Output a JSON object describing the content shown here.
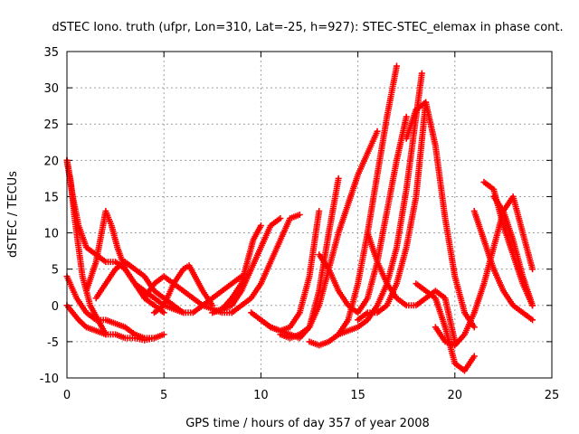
{
  "chart_data": {
    "type": "scatter",
    "title": "dSTEC Iono. truth (ufpr, Lon=310, Lat=-25, h=927): STEC-STEC_elemax in phase cont.",
    "xlabel": "GPS time / hours of day 357 of year 2008",
    "ylabel": "dSTEC  / TECUs",
    "xlim": [
      0,
      25
    ],
    "ylim": [
      -10,
      35
    ],
    "xticks": [
      0,
      5,
      10,
      15,
      20,
      25
    ],
    "yticks": [
      -10,
      -5,
      0,
      5,
      10,
      15,
      20,
      25,
      30,
      35
    ],
    "grid": true,
    "marker": "+",
    "color": "#ff0000",
    "series": [
      {
        "x": [
          0.0,
          0.2,
          0.4,
          0.6,
          0.8,
          1.0,
          1.2,
          1.4,
          1.6,
          1.8,
          2.0
        ],
        "y": [
          20,
          17,
          12,
          8,
          4,
          2,
          0,
          -1,
          -2,
          -3,
          -4
        ]
      },
      {
        "x": [
          0.0,
          0.3,
          0.6,
          1.0,
          1.5,
          2.0,
          2.5,
          3.0,
          3.5,
          4.0,
          4.5,
          5.0
        ],
        "y": [
          20,
          15,
          11,
          8,
          7,
          6,
          6,
          5,
          3,
          2,
          1,
          0
        ]
      },
      {
        "x": [
          0.0,
          0.5,
          1.0,
          1.5,
          2.0,
          2.5,
          3.0,
          3.5,
          4.0,
          4.5,
          5.0
        ],
        "y": [
          4,
          1,
          -1,
          -2,
          -2,
          -2.5,
          -3,
          -4,
          -4.5,
          -4.5,
          -4
        ]
      },
      {
        "x": [
          0.0,
          0.3,
          0.6,
          1.0,
          1.5,
          2.0,
          2.5,
          3.0,
          3.5,
          4.0,
          4.5
        ],
        "y": [
          0,
          -1,
          -2,
          -3,
          -3.5,
          -4,
          -4,
          -4.5,
          -4.5,
          -4.8,
          -4.5
        ]
      },
      {
        "x": [
          1.0,
          1.5,
          2.0,
          2.3,
          2.6,
          3.0,
          3.5,
          4.0,
          4.5,
          5.0
        ],
        "y": [
          2,
          6,
          13,
          11,
          8,
          5,
          3,
          1,
          0,
          -1
        ]
      },
      {
        "x": [
          1.5,
          2.0,
          2.5,
          3.0,
          3.5,
          4.0,
          4.5,
          5.0,
          5.5,
          6.0
        ],
        "y": [
          1,
          3,
          5,
          6,
          5,
          4,
          2,
          1,
          0,
          -1
        ]
      },
      {
        "x": [
          4.0,
          4.5,
          5.0,
          5.5,
          6.0,
          6.5,
          7.0,
          7.5,
          8.0,
          8.5
        ],
        "y": [
          1,
          3,
          4,
          3,
          2,
          1,
          0,
          -0.5,
          -1,
          -1
        ]
      },
      {
        "x": [
          4.5,
          5.0,
          5.5,
          6.0,
          6.3,
          6.6,
          7.0,
          7.5
        ],
        "y": [
          -1,
          0,
          3,
          5,
          5.5,
          4,
          2,
          0
        ]
      },
      {
        "x": [
          5.0,
          5.5,
          6.0,
          6.5,
          7.0,
          7.5,
          8.0,
          8.5,
          9.0
        ],
        "y": [
          0,
          -0.5,
          -1,
          -1,
          0,
          1,
          2,
          3,
          4
        ]
      },
      {
        "x": [
          7.5,
          8.0,
          8.5,
          9.0,
          9.3,
          9.6,
          10.0
        ],
        "y": [
          -1,
          -0.5,
          1,
          3,
          6,
          9,
          11
        ]
      },
      {
        "x": [
          7.5,
          8.0,
          8.5,
          9.0,
          9.5,
          10.0,
          10.5,
          11.0
        ],
        "y": [
          -1,
          -0.5,
          0,
          2,
          5,
          8,
          11,
          12
        ]
      },
      {
        "x": [
          8.5,
          9.0,
          9.5,
          10.0,
          10.5,
          11.0,
          11.5,
          12.0
        ],
        "y": [
          -1,
          0,
          1,
          3,
          6,
          9,
          12,
          12.5
        ]
      },
      {
        "x": [
          9.5,
          10.0,
          10.5,
          11.0,
          11.5,
          12.0,
          12.5,
          13.0
        ],
        "y": [
          -1,
          -2,
          -3,
          -3.5,
          -3,
          -1,
          4,
          13
        ]
      },
      {
        "x": [
          10.0,
          10.5,
          11.0,
          11.5,
          12.0,
          12.5,
          13.0,
          13.5,
          14.0
        ],
        "y": [
          -2,
          -3,
          -3.5,
          -4,
          -4.5,
          -3,
          2,
          10,
          17.5
        ]
      },
      {
        "x": [
          11.0,
          11.5,
          12.0,
          12.5,
          13.0,
          13.5,
          14.0,
          14.5,
          15.0,
          15.5,
          16.0
        ],
        "y": [
          -4,
          -4.5,
          -4,
          -3,
          0,
          5,
          10,
          14,
          18,
          21,
          24
        ]
      },
      {
        "x": [
          12.5,
          13.0,
          13.5,
          14.0,
          14.5,
          15.0,
          15.5,
          16.0,
          16.5,
          17.0
        ],
        "y": [
          -5,
          -5.5,
          -5,
          -4,
          -2,
          3,
          10,
          18,
          26,
          33
        ]
      },
      {
        "x": [
          13.0,
          13.5,
          14.0,
          14.5,
          15.0,
          15.5,
          16.0,
          16.5,
          17.0,
          17.5
        ],
        "y": [
          7,
          5,
          2,
          0,
          -1,
          1,
          6,
          13,
          20,
          26
        ]
      },
      {
        "x": [
          14.0,
          14.5,
          15.0,
          15.5,
          16.0,
          16.5,
          17.0,
          17.5,
          18.0,
          18.3
        ],
        "y": [
          -4,
          -3.5,
          -3,
          -2,
          0,
          3,
          8,
          16,
          26,
          32
        ]
      },
      {
        "x": [
          15.0,
          15.5,
          16.0,
          16.5,
          17.0,
          17.5,
          18.0,
          18.5
        ],
        "y": [
          -2,
          -1,
          -1,
          0,
          3,
          8,
          15,
          28
        ]
      },
      {
        "x": [
          15.5,
          16.0,
          16.5,
          17.0,
          17.5,
          18.0,
          18.5,
          19.0,
          19.5,
          20.0
        ],
        "y": [
          10,
          6,
          3,
          1,
          0,
          0,
          1,
          2,
          1,
          -5
        ]
      },
      {
        "x": [
          17.5,
          18.0,
          18.5,
          19.0,
          19.5,
          20.0,
          20.5,
          21.0
        ],
        "y": [
          23,
          27,
          28,
          22,
          12,
          4,
          -1,
          -3
        ]
      },
      {
        "x": [
          18.0,
          18.5,
          19.0,
          19.5,
          20.0,
          20.5,
          21.0
        ],
        "y": [
          3,
          2,
          1,
          -3,
          -8,
          -9,
          -7
        ]
      },
      {
        "x": [
          19.0,
          19.5,
          20.0,
          20.5,
          21.0,
          21.5,
          22.0,
          22.5,
          23.0,
          23.5,
          24.0
        ],
        "y": [
          -3,
          -5,
          -5.5,
          -4,
          -1,
          3,
          8,
          13,
          15,
          10,
          5
        ]
      },
      {
        "x": [
          21.0,
          21.5,
          22.0,
          22.5,
          23.0,
          23.5,
          24.0
        ],
        "y": [
          13,
          9,
          5,
          2,
          0,
          -1,
          -2
        ]
      },
      {
        "x": [
          21.5,
          22.0,
          22.5,
          23.0,
          23.5,
          24.0
        ],
        "y": [
          17,
          16,
          11,
          7,
          3,
          0
        ]
      },
      {
        "x": [
          22.0,
          22.5,
          23.0,
          23.5,
          24.0
        ],
        "y": [
          15,
          13,
          9,
          4,
          0
        ]
      }
    ]
  }
}
